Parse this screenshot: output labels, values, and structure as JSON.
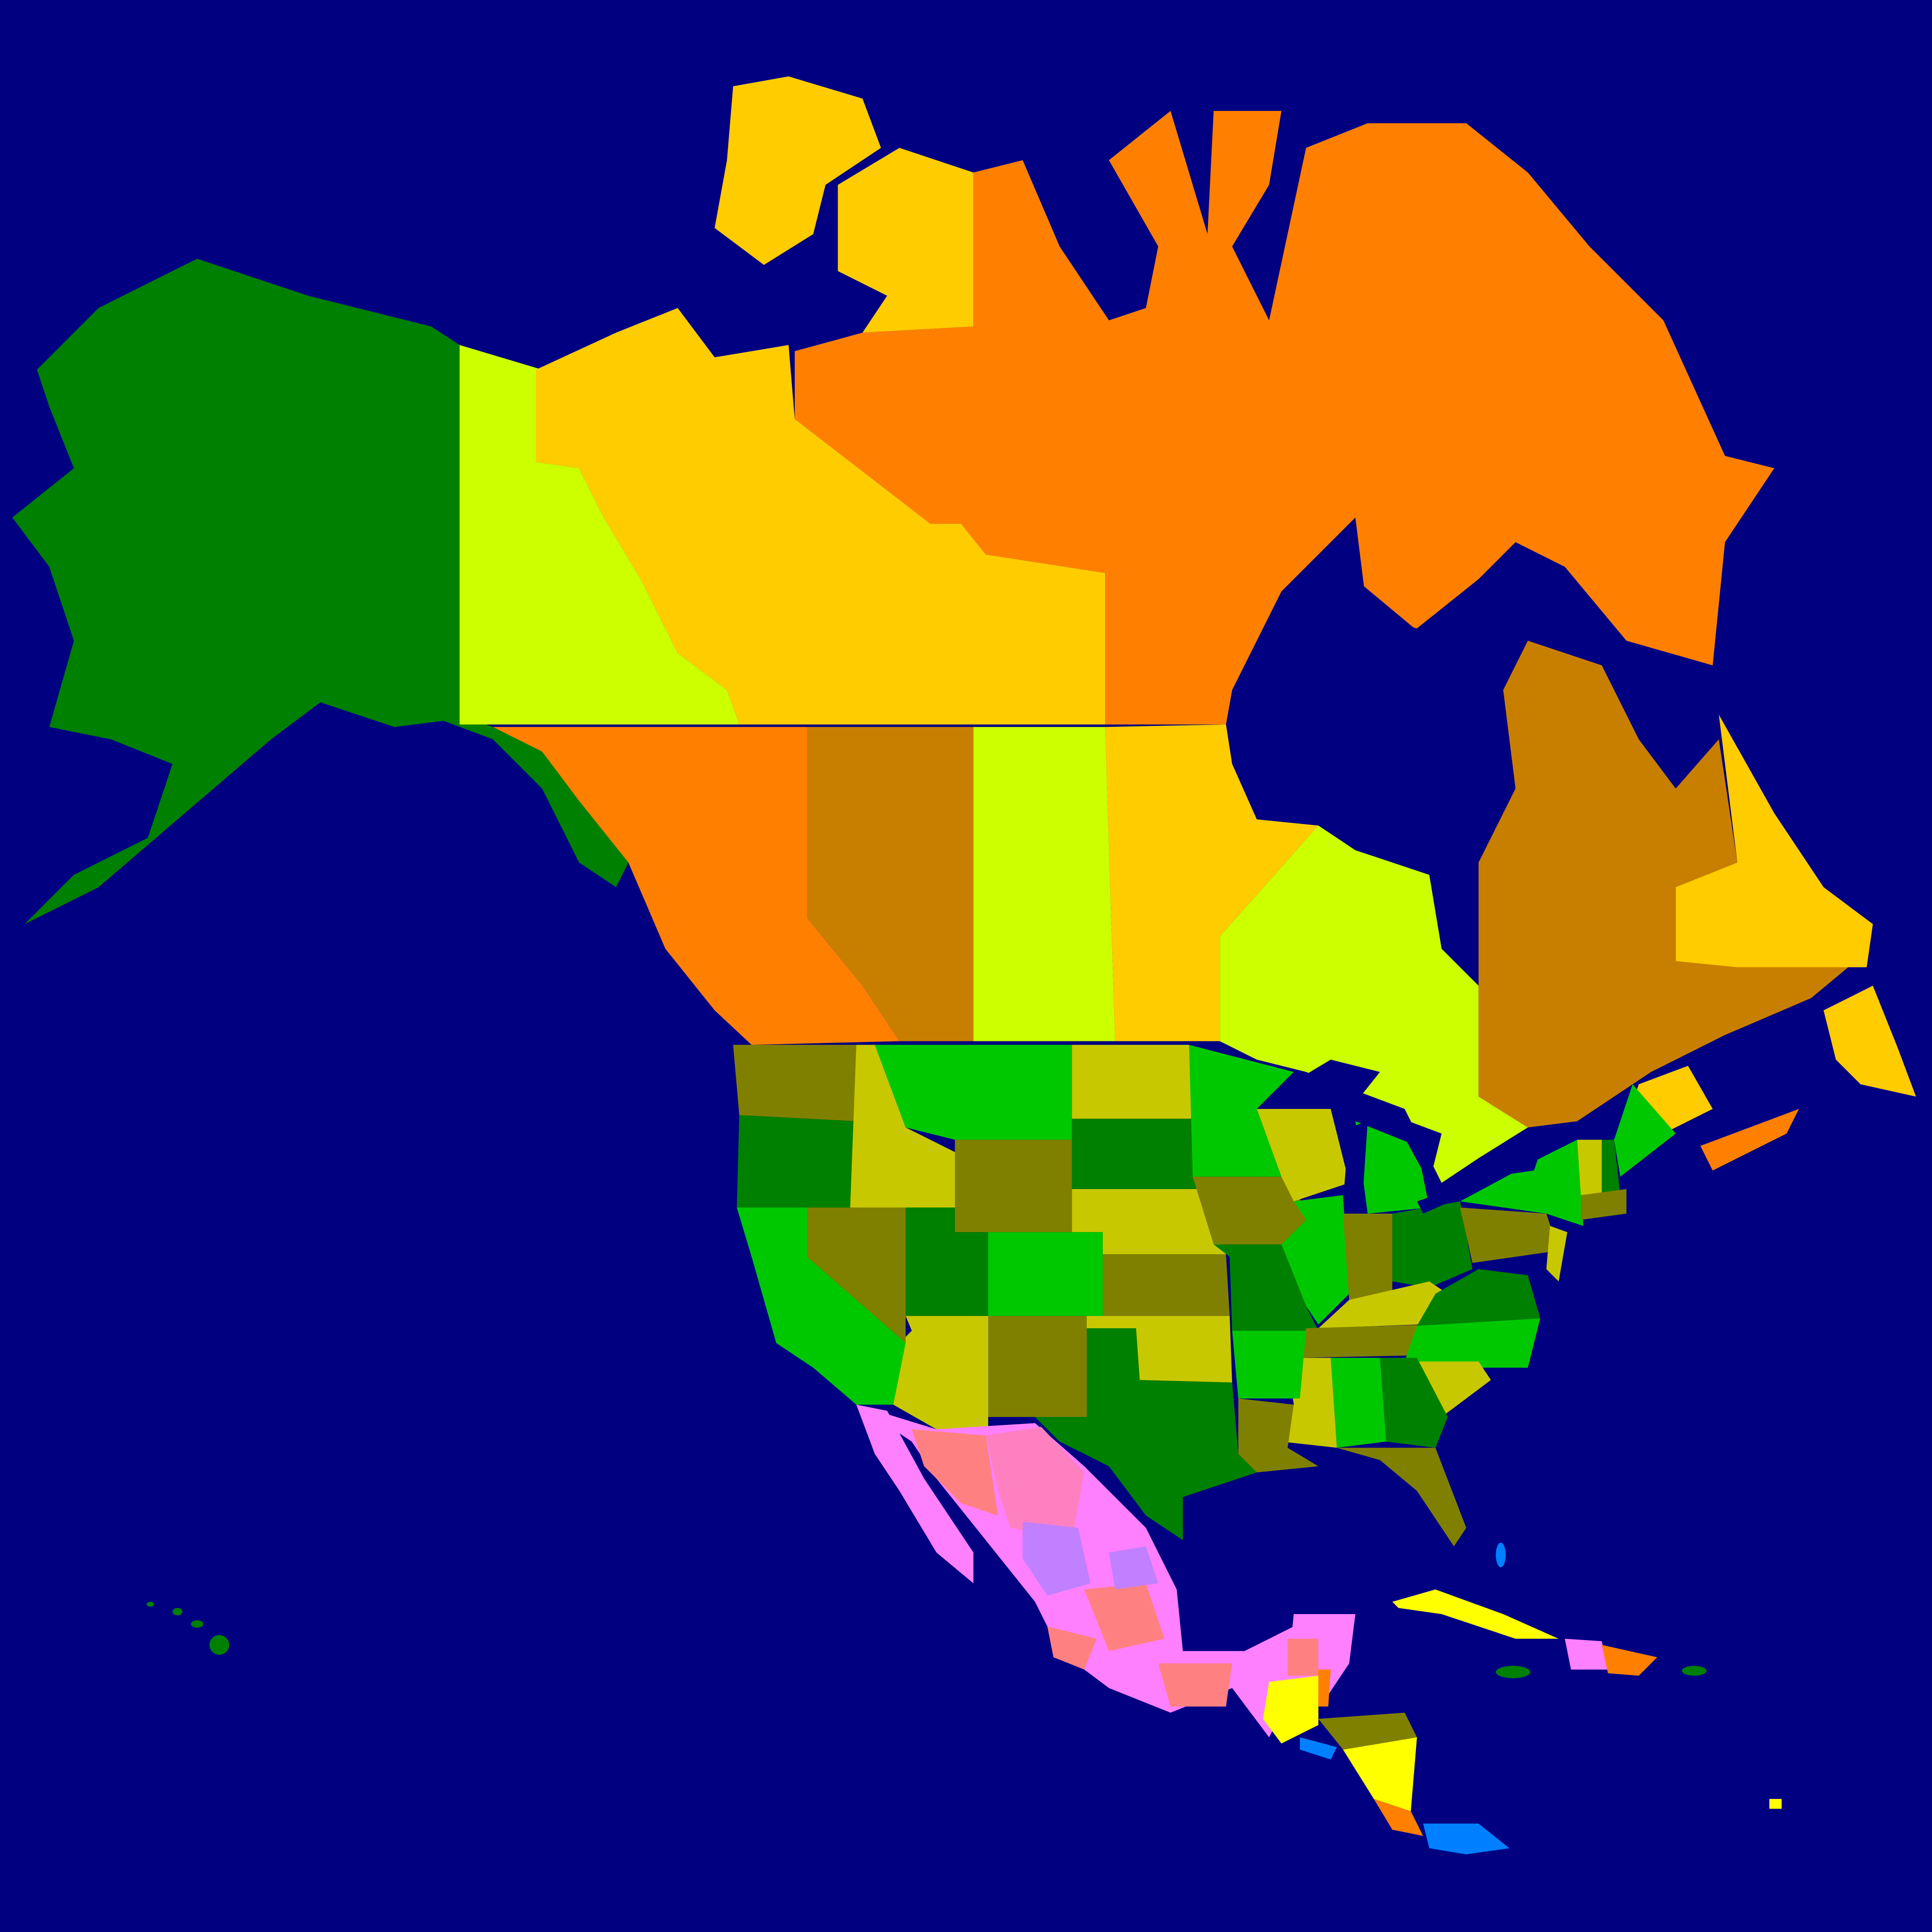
{
  "map": {
    "ocean_color": "#000080",
    "colors": {
      "green": "#008000",
      "bright_green": "#00c800",
      "olive": "#808000",
      "khaki": "#c8c800",
      "lime": "#ccff00",
      "amber": "#ffcc00",
      "orange": "#ff8000",
      "brown": "#c87f00",
      "pink": "#ff80ff",
      "rose": "#ff80c0",
      "violet": "#c080ff",
      "salmon": "#ff8080",
      "yellow": "#ffff00",
      "blue": "#0080ff",
      "water": "#000080"
    }
  }
}
